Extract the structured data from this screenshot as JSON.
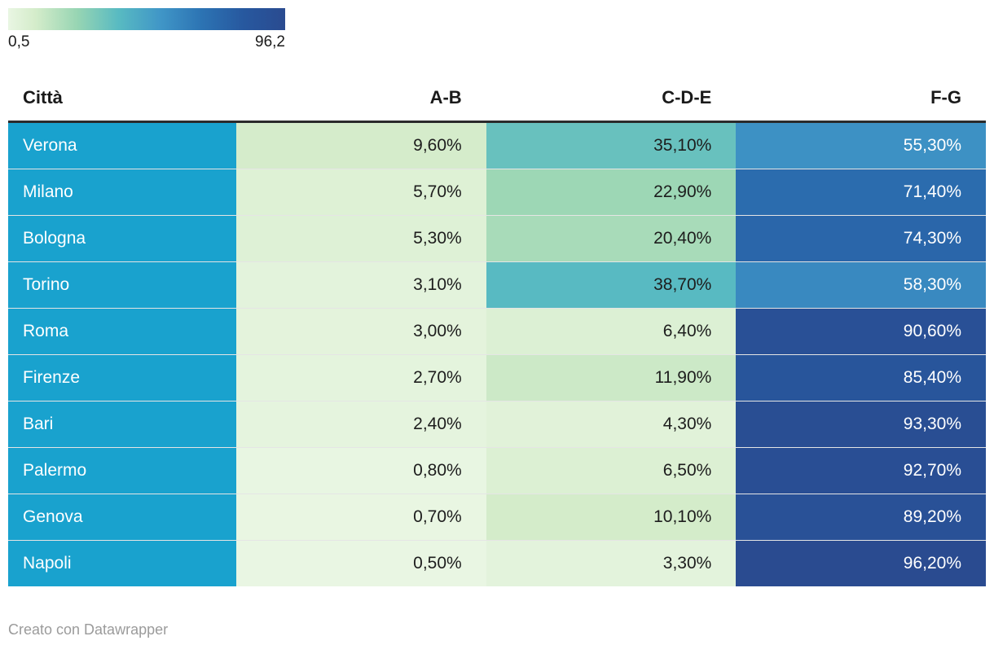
{
  "legend": {
    "min_label": "0,5",
    "max_label": "96,2"
  },
  "table": {
    "columns": [
      "Città",
      "A-B",
      "C-D-E",
      "F-G"
    ],
    "rows": [
      {
        "city": "Verona",
        "values": [
          "9,60%",
          "35,10%",
          "55,30%"
        ]
      },
      {
        "city": "Milano",
        "values": [
          "5,70%",
          "22,90%",
          "71,40%"
        ]
      },
      {
        "city": "Bologna",
        "values": [
          "5,30%",
          "20,40%",
          "74,30%"
        ]
      },
      {
        "city": "Torino",
        "values": [
          "3,10%",
          "38,70%",
          "58,30%"
        ]
      },
      {
        "city": "Roma",
        "values": [
          "3,00%",
          "6,40%",
          "90,60%"
        ]
      },
      {
        "city": "Firenze",
        "values": [
          "2,70%",
          "11,90%",
          "85,40%"
        ]
      },
      {
        "city": "Bari",
        "values": [
          "2,40%",
          "4,30%",
          "93,30%"
        ]
      },
      {
        "city": "Palermo",
        "values": [
          "0,80%",
          "6,50%",
          "92,70%"
        ]
      },
      {
        "city": "Genova",
        "values": [
          "0,70%",
          "10,10%",
          "89,20%"
        ]
      },
      {
        "city": "Napoli",
        "values": [
          "0,50%",
          "3,30%",
          "96,20%"
        ]
      }
    ]
  },
  "footer": {
    "credit": "Creato con Datawrapper"
  },
  "colors": {
    "city_cell": "#19a2ce",
    "text_dark": "#1d1d1d",
    "text_light": "#ffffff",
    "header_rule": "#2b2b2b",
    "scale_stops": [
      {
        "t": 0.0,
        "color": "#e9f6e3"
      },
      {
        "t": 0.1,
        "color": "#d4ecca"
      },
      {
        "t": 0.25,
        "color": "#97d5b3"
      },
      {
        "t": 0.4,
        "color": "#58bac2"
      },
      {
        "t": 0.55,
        "color": "#4096c7"
      },
      {
        "t": 0.7,
        "color": "#2c73b3"
      },
      {
        "t": 0.85,
        "color": "#27589f"
      },
      {
        "t": 1.0,
        "color": "#2a4b90"
      }
    ]
  },
  "chart_data": {
    "type": "heatmap",
    "title": "",
    "rows": [
      "Verona",
      "Milano",
      "Bologna",
      "Torino",
      "Roma",
      "Firenze",
      "Bari",
      "Palermo",
      "Genova",
      "Napoli"
    ],
    "columns": [
      "A-B",
      "C-D-E",
      "F-G"
    ],
    "values": [
      [
        9.6,
        35.1,
        55.3
      ],
      [
        5.7,
        22.9,
        71.4
      ],
      [
        5.3,
        20.4,
        74.3
      ],
      [
        3.1,
        38.7,
        58.3
      ],
      [
        3.0,
        6.4,
        90.6
      ],
      [
        2.7,
        11.9,
        85.4
      ],
      [
        2.4,
        4.3,
        93.3
      ],
      [
        0.8,
        6.5,
        92.7
      ],
      [
        0.7,
        10.1,
        89.2
      ],
      [
        0.5,
        3.3,
        96.2
      ]
    ],
    "value_format": "percent with comma decimal",
    "color_scale": {
      "min": 0.5,
      "max": 96.2,
      "legend_min_label": "0,5",
      "legend_max_label": "96,2"
    },
    "legend_position": "top-left",
    "grid": false
  }
}
